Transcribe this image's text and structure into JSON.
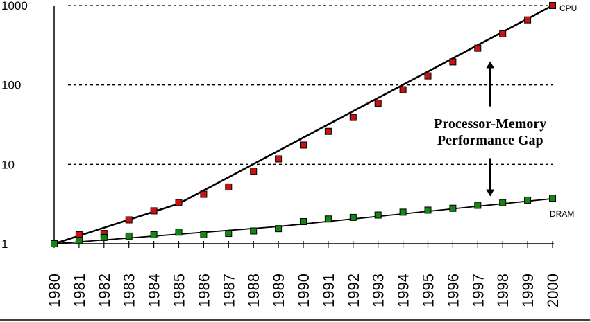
{
  "chart_data": {
    "type": "line",
    "yscale": "log",
    "ylim": [
      1,
      1000
    ],
    "yticks": [
      {
        "value": 1,
        "label": "1"
      },
      {
        "value": 10,
        "label": "10"
      },
      {
        "value": 100,
        "label": "100"
      },
      {
        "value": 1000,
        "label": "1000"
      }
    ],
    "x": [
      "1980",
      "1981",
      "1982",
      "1983",
      "1984",
      "1985",
      "1986",
      "1987",
      "1988",
      "1989",
      "1990",
      "1991",
      "1992",
      "1993",
      "1994",
      "1995",
      "1996",
      "1997",
      "1998",
      "1999",
      "2000"
    ],
    "series": [
      {
        "name": "CPU",
        "color": "#cc1111",
        "values": [
          1,
          1.3,
          1.35,
          2.0,
          2.6,
          3.3,
          4.2,
          5.2,
          8.2,
          11.7,
          17.5,
          26,
          39,
          59,
          87,
          130,
          195,
          290,
          440,
          660,
          1000
        ],
        "trend": [
          [
            0,
            1
          ],
          [
            5,
            3.2
          ],
          [
            20,
            1000
          ]
        ]
      },
      {
        "name": "DRAM",
        "color": "#118811",
        "values": [
          1,
          1.1,
          1.2,
          1.25,
          1.3,
          1.4,
          1.3,
          1.35,
          1.45,
          1.55,
          1.9,
          2.05,
          2.15,
          2.3,
          2.5,
          2.65,
          2.8,
          3.05,
          3.3,
          3.55,
          3.75
        ],
        "trend": [
          [
            0,
            1
          ],
          [
            9,
            1.65
          ],
          [
            20,
            3.7
          ]
        ]
      }
    ],
    "gridlines": [
      10,
      100,
      1000
    ],
    "annotation": {
      "lines": [
        "Processor-Memory",
        "Performance Gap"
      ],
      "arrow_x": 17.5,
      "arrow_top": 290,
      "arrow_bottom": 3.05
    }
  }
}
